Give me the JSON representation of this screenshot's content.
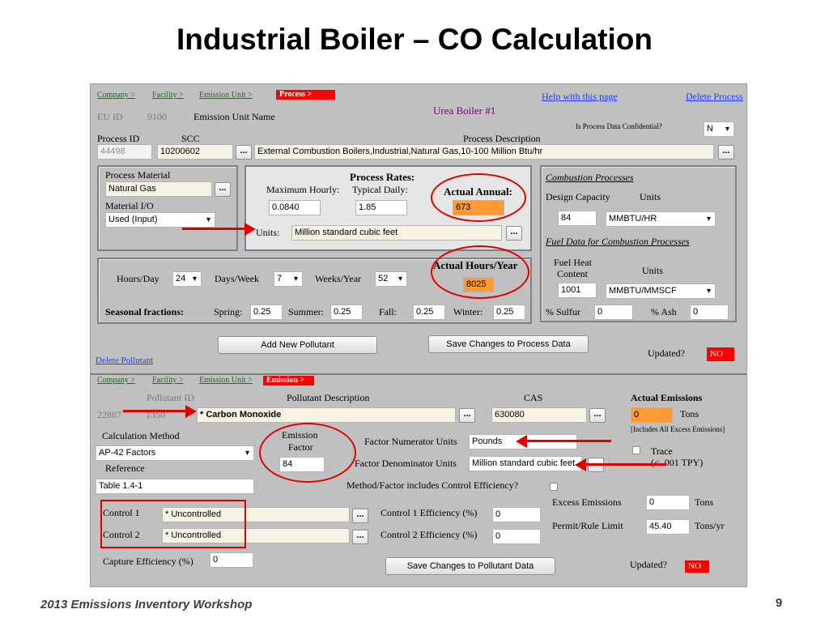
{
  "slide": {
    "title": "Industrial Boiler – CO Calculation",
    "footer": "2013 Emissions Inventory Workshop",
    "page_number": "9"
  },
  "process": {
    "breadcrumb": {
      "company": "Company >",
      "facility": "Facility >",
      "emission_unit": "Emission Unit >",
      "process": "Process >"
    },
    "help_link": "Help with this page",
    "delete_link": "Delete Process",
    "eu_id_label": "EU ID",
    "eu_id_value": "9100",
    "emission_unit_name_label": "Emission Unit Name",
    "emission_unit_name": "Urea Boiler #1",
    "confidential_label": "Is Process Data Confidential?",
    "confidential_value": "N",
    "process_id_label": "Process ID",
    "process_id_value": "44498",
    "scc_label": "SCC",
    "scc_value": "10200602",
    "description_label": "Process Description",
    "description_value": "External Combustion Boilers,Industrial,Natural Gas,10-100 Million Btu/hr",
    "dots_label": "...",
    "material": {
      "label": "Process Material",
      "value": "Natural Gas",
      "io_label": "Material I/O",
      "io_value": "Used (Input)"
    },
    "rates": {
      "title": "Process Rates:",
      "max_hourly_label": "Maximum Hourly:",
      "max_hourly_value": "0.0840",
      "typical_daily_label": "Typical Daily:",
      "typical_daily_value": "1.85",
      "actual_annual_label": "Actual Annual:",
      "actual_annual_value": "673",
      "units_label": "Units:",
      "units_value": "Million standard cubic feet"
    },
    "combustion": {
      "title": "Combustion Processes",
      "design_capacity_label": "Design Capacity",
      "units_label": "Units",
      "design_capacity_value": "84",
      "design_capacity_units": "MMBTU/HR",
      "fuel_title": "Fuel Data for Combustion Processes",
      "fuel_heat_label_1": "Fuel Heat",
      "fuel_heat_label_2": "Content",
      "fuel_units_label": "Units",
      "fuel_heat_value": "1001",
      "fuel_heat_units": "MMBTU/MMSCF",
      "sulfur_label": "% Sulfur",
      "sulfur_value": "0",
      "ash_label": "% Ash",
      "ash_value": "0"
    },
    "schedule": {
      "hours_day_label": "Hours/Day",
      "hours_day_value": "24",
      "days_week_label": "Days/Week",
      "days_week_value": "7",
      "weeks_year_label": "Weeks/Year",
      "weeks_year_value": "52",
      "actual_hours_label": "Actual Hours/Year",
      "actual_hours_value": "8025",
      "seasonal_label": "Seasonal fractions:",
      "spring_label": "Spring:",
      "spring_value": "0.25",
      "summer_label": "Summer:",
      "summer_value": "0.25",
      "fall_label": "Fall:",
      "fall_value": "0.25",
      "winter_label": "Winter:",
      "winter_value": "0.25"
    },
    "add_pollutant_button": "Add New Pollutant",
    "save_button": "Save Changes to Process Data",
    "updated_label": "Updated?",
    "updated_value": "NO",
    "delete_pollutant_link": "Delete Pollutant"
  },
  "emission": {
    "breadcrumb": {
      "company": "Company >",
      "facility": "Facility >",
      "emission_unit": "Emission Unit >",
      "emission": "Emission >"
    },
    "pollutant_id_label": "Pollutant ID",
    "pollutant_id_a": "22887",
    "pollutant_id_b": "1350",
    "pollutant_desc_label": "Pollutant Description",
    "pollutant_desc_value": "* Carbon Monoxide",
    "cas_label": "CAS",
    "cas_value": "630080",
    "actual_emissions_label": "Actual Emissions",
    "actual_emissions_value": "0",
    "tons_label": "Tons",
    "includes_label": "[Includes All Excess Emissions]",
    "calc_method_label": "Calculation Method",
    "calc_method_value": "AP-42 Factors",
    "emission_factor_label_1": "Emission",
    "emission_factor_label_2": "Factor",
    "emission_factor_value": "84",
    "factor_numerator_label": "Factor Numerator Units",
    "factor_numerator_value": "Pounds",
    "factor_denominator_label": "Factor Denominator Units",
    "factor_denominator_value": "Million standard cubic feet",
    "trace_label": "Trace",
    "trace_note": "(< .001 TPY)",
    "reference_label": "Reference",
    "reference_value": "Table 1.4-1",
    "control_eff_label": "Method/Factor includes Control Efficiency?",
    "control1_label": "Control 1",
    "control1_value": "* Uncontrolled",
    "control2_label": "Control 2",
    "control2_value": "* Uncontrolled",
    "control1_eff_label": "Control 1 Efficiency (%)",
    "control1_eff_value": "0",
    "control2_eff_label": "Control 2 Efficiency (%)",
    "control2_eff_value": "0",
    "excess_label": "Excess Emissions",
    "excess_value": "0",
    "excess_units": "Tons",
    "permit_label": "Permit/Rule Limit",
    "permit_value": "45.40",
    "permit_units": "Tons/yr",
    "capture_label": "Capture Efficiency (%)",
    "capture_value": "0",
    "save_button": "Save Changes to Pollutant Data",
    "updated_label": "Updated?",
    "updated_value": "NO"
  },
  "colors": {
    "highlight_orange": "#ff9933",
    "annotation_red": "#e00000",
    "form_grey": "#c0c0c0",
    "link_green": "#008000",
    "link_blue": "#1f3fff"
  }
}
